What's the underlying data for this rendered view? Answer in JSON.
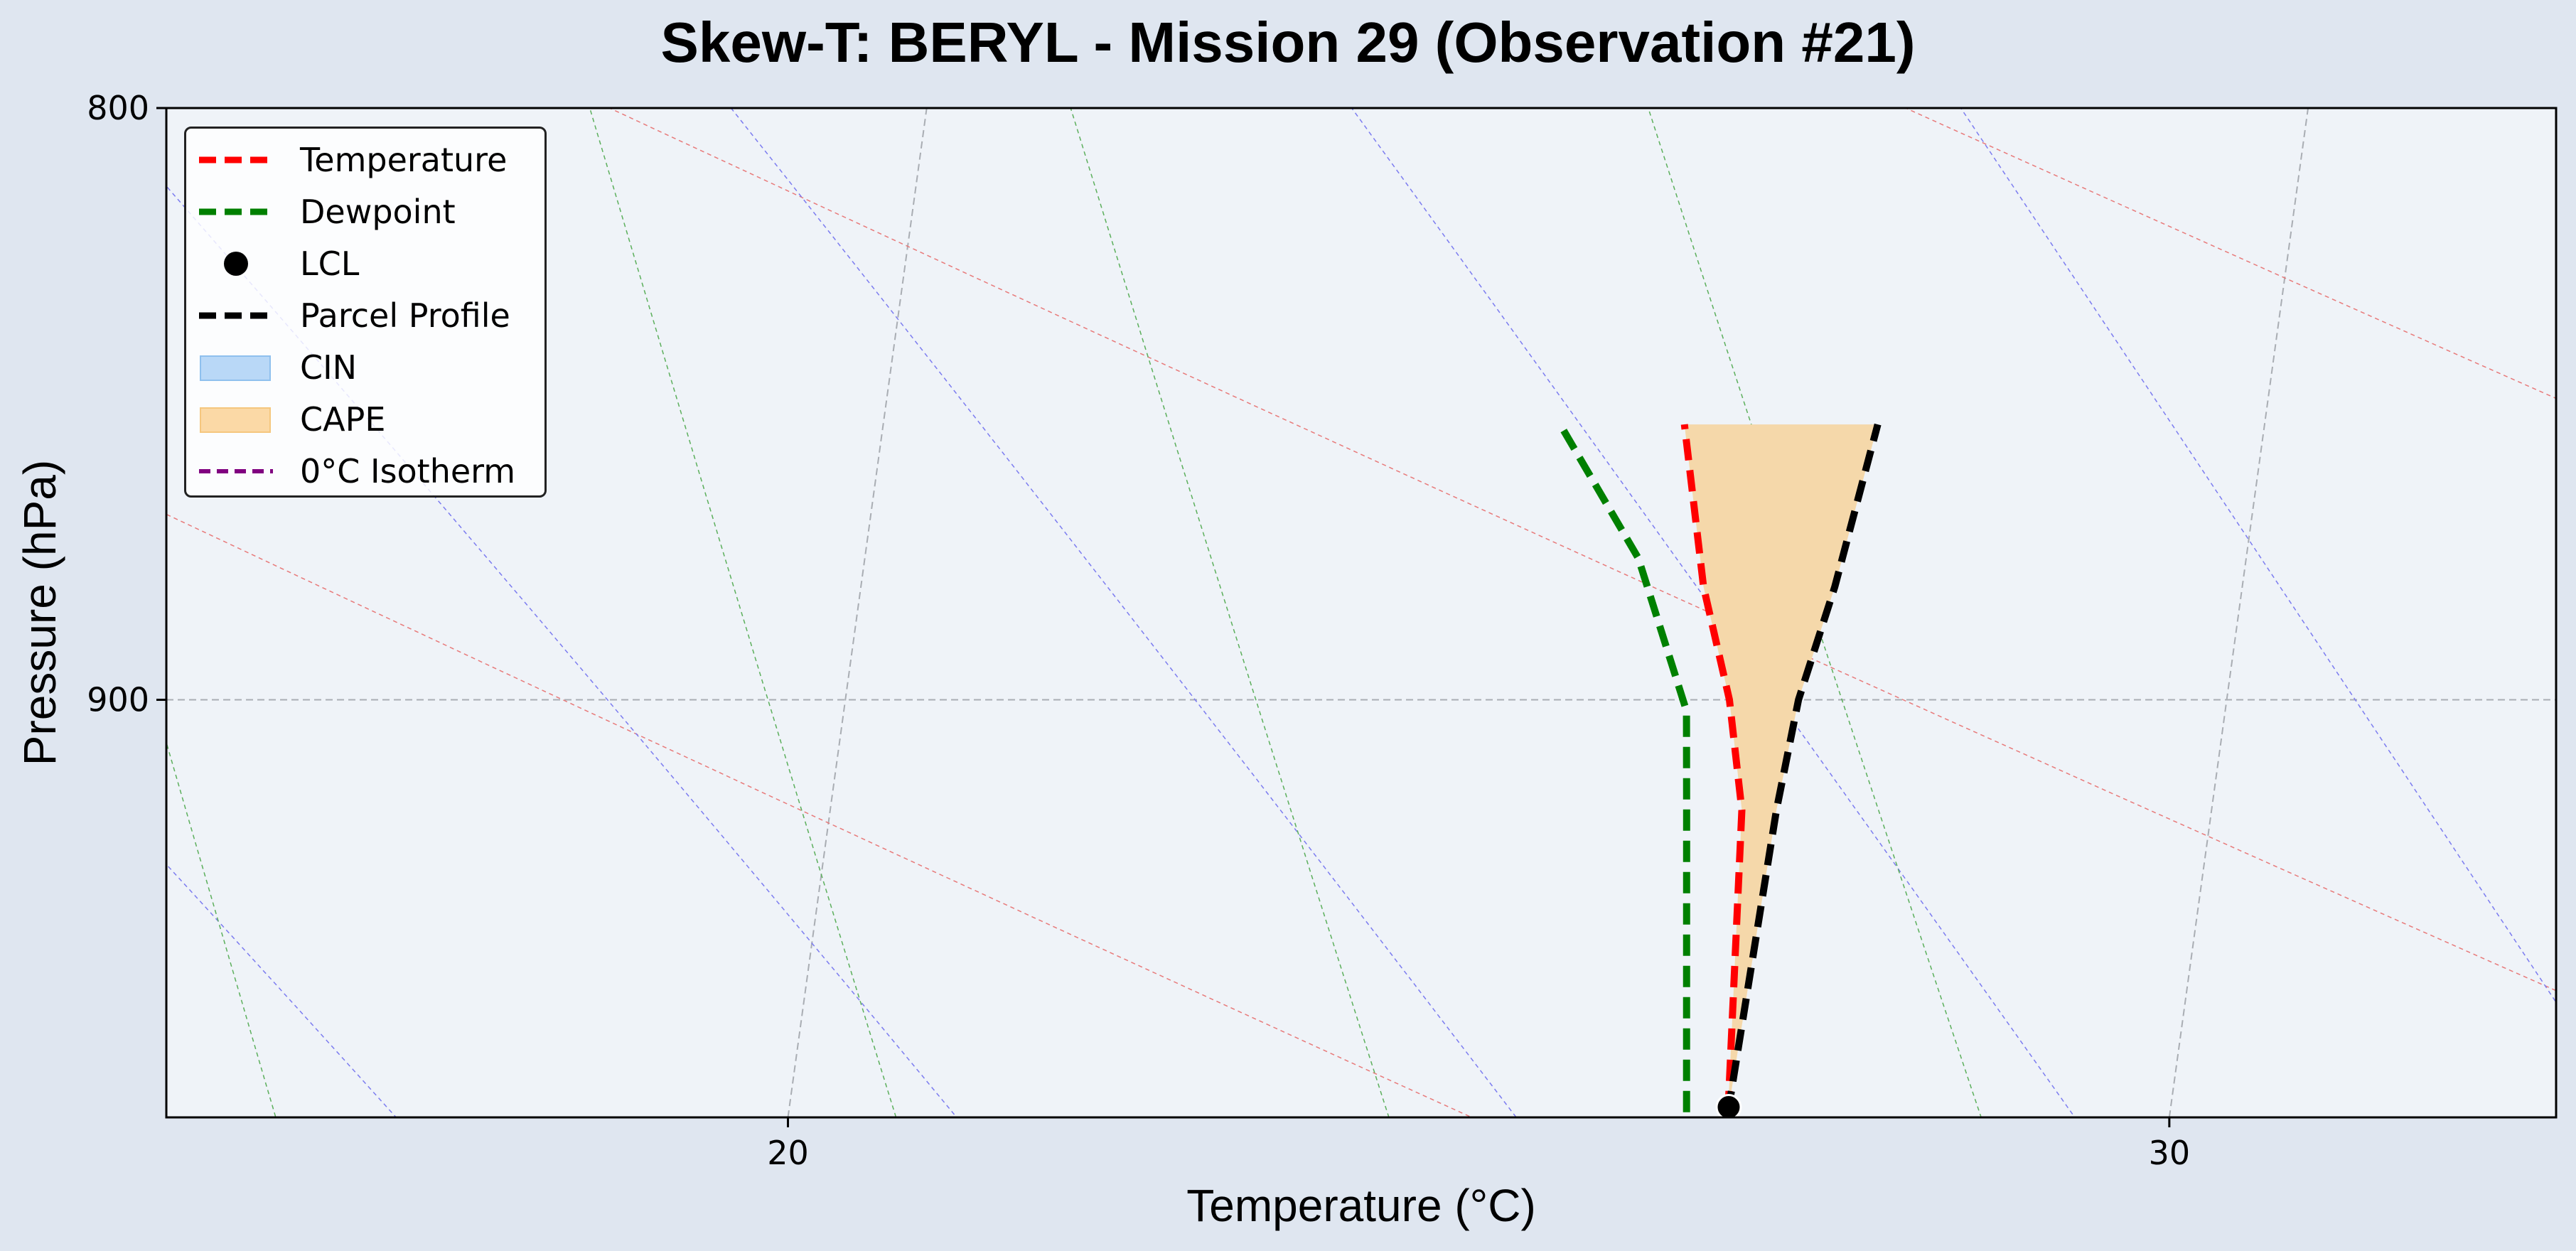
{
  "chart_data": {
    "type": "line",
    "title": "Skew-T: BERYL - Mission 29 (Observation #21)",
    "xlabel": "Temperature (°C)",
    "ylabel": "Pressure (hPa)",
    "xlim": [
      15.5,
      32.8
    ],
    "ylim": [
      978,
      800
    ],
    "skew_degrees_per_log": 5.0,
    "x_ticks": [
      "20",
      "30"
    ],
    "y_ticks": [
      "800",
      "900"
    ],
    "legend_location": "upper left",
    "series": [
      {
        "name": "Temperature",
        "color": "#ff0000",
        "style": "dashed",
        "points": [
          [
            26.8,
            977
          ],
          [
            26.6,
            920
          ],
          [
            26.4,
            900
          ],
          [
            26.1,
            880
          ],
          [
            25.8,
            852
          ]
        ]
      },
      {
        "name": "Dewpoint",
        "color": "#008000",
        "style": "dashed",
        "points": [
          [
            26.5,
            977
          ],
          [
            26.2,
            920
          ],
          [
            26.1,
            902
          ],
          [
            25.6,
            875
          ],
          [
            24.9,
            852
          ]
        ]
      },
      {
        "name": "Parcel Profile",
        "color": "#000000",
        "style": "dashed",
        "points": [
          [
            26.8,
            977
          ],
          [
            26.85,
            920
          ],
          [
            26.9,
            900
          ],
          [
            27.05,
            880
          ],
          [
            27.2,
            852
          ]
        ]
      }
    ],
    "lcl": {
      "name": "LCL",
      "temperature": 26.8,
      "pressure": 976
    },
    "cape": {
      "name": "CAPE",
      "color": "#f5c77e",
      "top_pressure": 852,
      "bottom_pressure": 977
    },
    "cin": {
      "name": "CIN",
      "color": "#9fc9f5"
    },
    "isotherm_0c": {
      "name": "0°C Isotherm",
      "color": "#800080"
    }
  }
}
